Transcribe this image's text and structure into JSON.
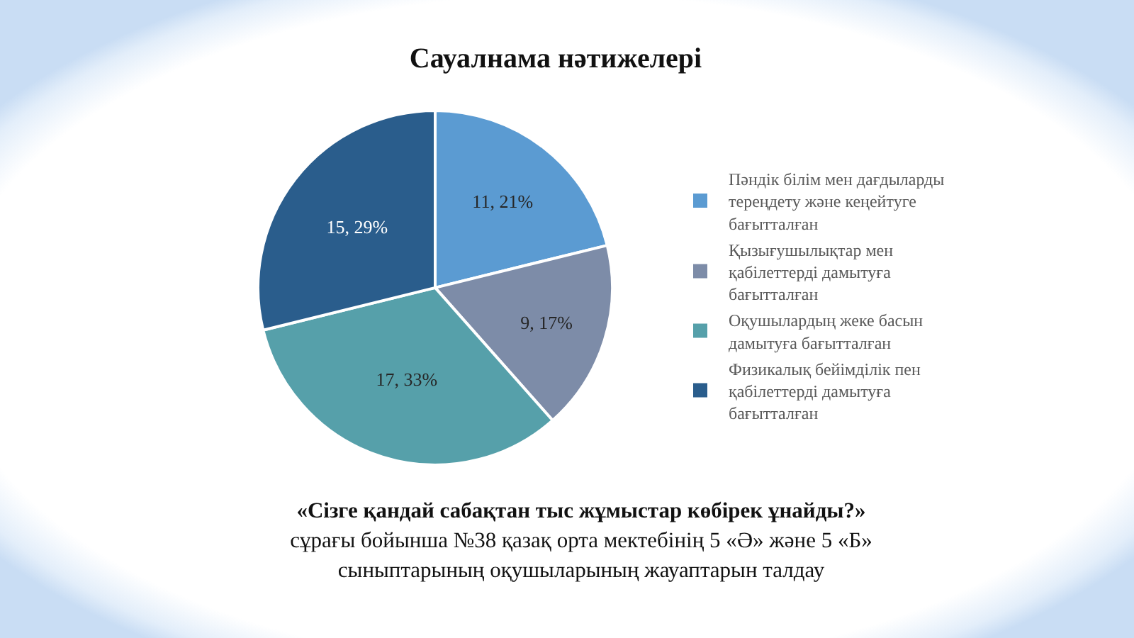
{
  "chart_data": {
    "type": "pie",
    "title": "Сауалнама нәтижелері",
    "categories": [
      "Пәндік білім мен дағдыларды тереңдету және кеңейтуге бағытталған",
      "Қызығушылықтар мен қабілеттерді дамытуға бағытталған",
      "Оқушылардың жеке басын дамытуға бағытталған",
      "Физикалық бейімділік пен қабілеттерді дамытуға бағытталған"
    ],
    "values": [
      11,
      9,
      17,
      15
    ],
    "colors": [
      "#5b9bd2",
      "#7d8ca8",
      "#56a0aa",
      "#2a5d8c"
    ],
    "value_labels": [
      "11, 21%",
      "9, 17%",
      "17, 33%",
      "15, 29%"
    ],
    "legend": "right",
    "annotations": [
      "«Сізге қандай сабақтан тыс жұмыстар көбірек ұнайды?»",
      "сұрағы бойынша №38 қазақ орта мектебінің 5 «Ә» және 5 «Б» сыныптарының оқушыларының жауаптарын талдау"
    ]
  }
}
